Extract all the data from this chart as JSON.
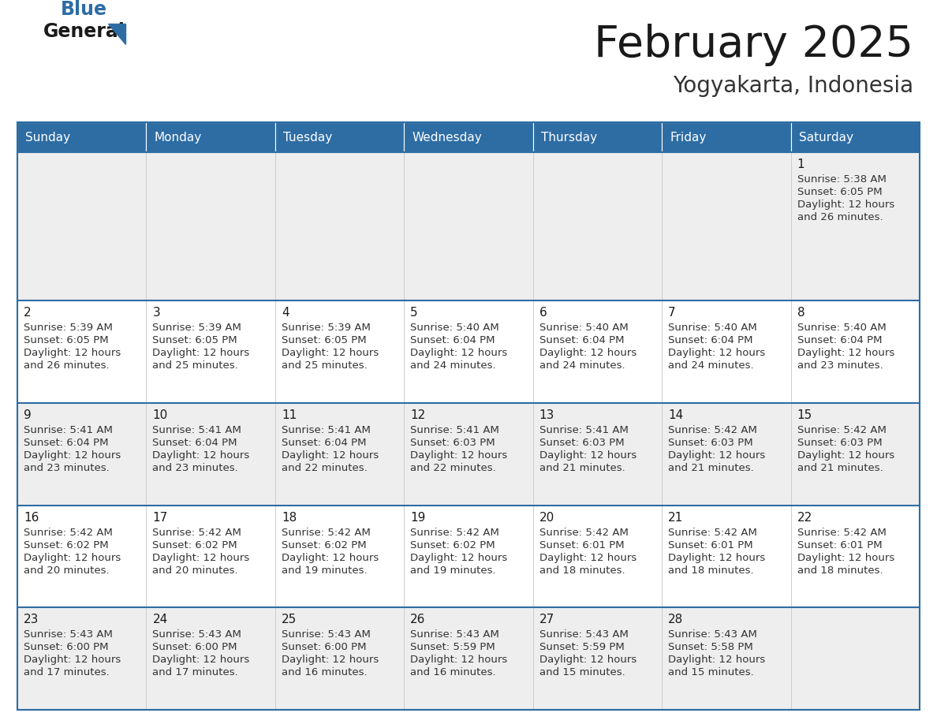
{
  "title": "February 2025",
  "subtitle": "Yogyakarta, Indonesia",
  "header_color": "#2E6DA4",
  "header_text_color": "#FFFFFF",
  "background_color": "#FFFFFF",
  "cell_bg_row0": "#EEEEEE",
  "cell_bg_even": "#EEEEEE",
  "cell_bg_odd": "#FFFFFF",
  "day_headers": [
    "Sunday",
    "Monday",
    "Tuesday",
    "Wednesday",
    "Thursday",
    "Friday",
    "Saturday"
  ],
  "title_color": "#1a1a1a",
  "subtitle_color": "#333333",
  "day_number_color": "#1a1a1a",
  "info_color": "#333333",
  "logo_general_color": "#1a1a1a",
  "logo_blue_color": "#2E6DA4",
  "border_color": "#2E6DA4",
  "grid_color": "#CCCCCC",
  "days": [
    {
      "day": 1,
      "col": 6,
      "row": 0,
      "sunrise": "5:38 AM",
      "sunset": "6:05 PM",
      "daylight": "12 hours",
      "daylight2": "and 26 minutes."
    },
    {
      "day": 2,
      "col": 0,
      "row": 1,
      "sunrise": "5:39 AM",
      "sunset": "6:05 PM",
      "daylight": "12 hours",
      "daylight2": "and 26 minutes."
    },
    {
      "day": 3,
      "col": 1,
      "row": 1,
      "sunrise": "5:39 AM",
      "sunset": "6:05 PM",
      "daylight": "12 hours",
      "daylight2": "and 25 minutes."
    },
    {
      "day": 4,
      "col": 2,
      "row": 1,
      "sunrise": "5:39 AM",
      "sunset": "6:05 PM",
      "daylight": "12 hours",
      "daylight2": "and 25 minutes."
    },
    {
      "day": 5,
      "col": 3,
      "row": 1,
      "sunrise": "5:40 AM",
      "sunset": "6:04 PM",
      "daylight": "12 hours",
      "daylight2": "and 24 minutes."
    },
    {
      "day": 6,
      "col": 4,
      "row": 1,
      "sunrise": "5:40 AM",
      "sunset": "6:04 PM",
      "daylight": "12 hours",
      "daylight2": "and 24 minutes."
    },
    {
      "day": 7,
      "col": 5,
      "row": 1,
      "sunrise": "5:40 AM",
      "sunset": "6:04 PM",
      "daylight": "12 hours",
      "daylight2": "and 24 minutes."
    },
    {
      "day": 8,
      "col": 6,
      "row": 1,
      "sunrise": "5:40 AM",
      "sunset": "6:04 PM",
      "daylight": "12 hours",
      "daylight2": "and 23 minutes."
    },
    {
      "day": 9,
      "col": 0,
      "row": 2,
      "sunrise": "5:41 AM",
      "sunset": "6:04 PM",
      "daylight": "12 hours",
      "daylight2": "and 23 minutes."
    },
    {
      "day": 10,
      "col": 1,
      "row": 2,
      "sunrise": "5:41 AM",
      "sunset": "6:04 PM",
      "daylight": "12 hours",
      "daylight2": "and 23 minutes."
    },
    {
      "day": 11,
      "col": 2,
      "row": 2,
      "sunrise": "5:41 AM",
      "sunset": "6:04 PM",
      "daylight": "12 hours",
      "daylight2": "and 22 minutes."
    },
    {
      "day": 12,
      "col": 3,
      "row": 2,
      "sunrise": "5:41 AM",
      "sunset": "6:03 PM",
      "daylight": "12 hours",
      "daylight2": "and 22 minutes."
    },
    {
      "day": 13,
      "col": 4,
      "row": 2,
      "sunrise": "5:41 AM",
      "sunset": "6:03 PM",
      "daylight": "12 hours",
      "daylight2": "and 21 minutes."
    },
    {
      "day": 14,
      "col": 5,
      "row": 2,
      "sunrise": "5:42 AM",
      "sunset": "6:03 PM",
      "daylight": "12 hours",
      "daylight2": "and 21 minutes."
    },
    {
      "day": 15,
      "col": 6,
      "row": 2,
      "sunrise": "5:42 AM",
      "sunset": "6:03 PM",
      "daylight": "12 hours",
      "daylight2": "and 21 minutes."
    },
    {
      "day": 16,
      "col": 0,
      "row": 3,
      "sunrise": "5:42 AM",
      "sunset": "6:02 PM",
      "daylight": "12 hours",
      "daylight2": "and 20 minutes."
    },
    {
      "day": 17,
      "col": 1,
      "row": 3,
      "sunrise": "5:42 AM",
      "sunset": "6:02 PM",
      "daylight": "12 hours",
      "daylight2": "and 20 minutes."
    },
    {
      "day": 18,
      "col": 2,
      "row": 3,
      "sunrise": "5:42 AM",
      "sunset": "6:02 PM",
      "daylight": "12 hours",
      "daylight2": "and 19 minutes."
    },
    {
      "day": 19,
      "col": 3,
      "row": 3,
      "sunrise": "5:42 AM",
      "sunset": "6:02 PM",
      "daylight": "12 hours",
      "daylight2": "and 19 minutes."
    },
    {
      "day": 20,
      "col": 4,
      "row": 3,
      "sunrise": "5:42 AM",
      "sunset": "6:01 PM",
      "daylight": "12 hours",
      "daylight2": "and 18 minutes."
    },
    {
      "day": 21,
      "col": 5,
      "row": 3,
      "sunrise": "5:42 AM",
      "sunset": "6:01 PM",
      "daylight": "12 hours",
      "daylight2": "and 18 minutes."
    },
    {
      "day": 22,
      "col": 6,
      "row": 3,
      "sunrise": "5:42 AM",
      "sunset": "6:01 PM",
      "daylight": "12 hours",
      "daylight2": "and 18 minutes."
    },
    {
      "day": 23,
      "col": 0,
      "row": 4,
      "sunrise": "5:43 AM",
      "sunset": "6:00 PM",
      "daylight": "12 hours",
      "daylight2": "and 17 minutes."
    },
    {
      "day": 24,
      "col": 1,
      "row": 4,
      "sunrise": "5:43 AM",
      "sunset": "6:00 PM",
      "daylight": "12 hours",
      "daylight2": "and 17 minutes."
    },
    {
      "day": 25,
      "col": 2,
      "row": 4,
      "sunrise": "5:43 AM",
      "sunset": "6:00 PM",
      "daylight": "12 hours",
      "daylight2": "and 16 minutes."
    },
    {
      "day": 26,
      "col": 3,
      "row": 4,
      "sunrise": "5:43 AM",
      "sunset": "5:59 PM",
      "daylight": "12 hours",
      "daylight2": "and 16 minutes."
    },
    {
      "day": 27,
      "col": 4,
      "row": 4,
      "sunrise": "5:43 AM",
      "sunset": "5:59 PM",
      "daylight": "12 hours",
      "daylight2": "and 15 minutes."
    },
    {
      "day": 28,
      "col": 5,
      "row": 4,
      "sunrise": "5:43 AM",
      "sunset": "5:58 PM",
      "daylight": "12 hours",
      "daylight2": "and 15 minutes."
    }
  ]
}
